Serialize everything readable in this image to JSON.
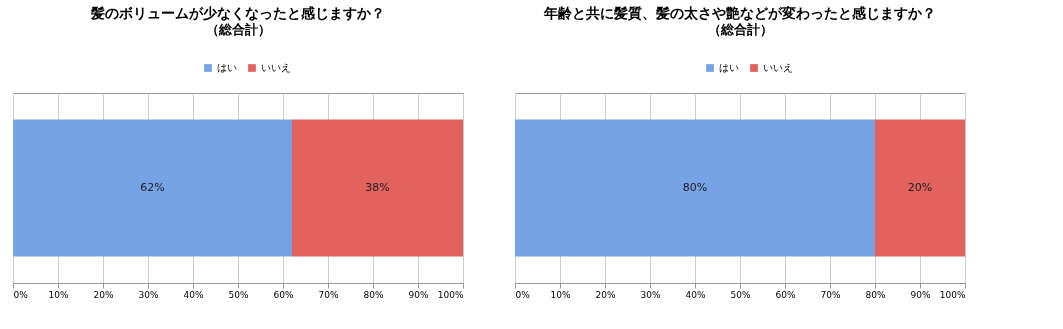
{
  "chart_data": [
    {
      "type": "bar",
      "orientation": "horizontal",
      "stacked": true,
      "title": "髪のボリュームが少なくなったと感じますか？",
      "subtitle": "（総合計）",
      "categories": [
        null
      ],
      "series": [
        {
          "name": "はい",
          "color": "#76a3e6",
          "values": [
            62
          ],
          "value_labels": [
            "62%"
          ]
        },
        {
          "name": "いいえ",
          "color": "#e2625e",
          "values": [
            38
          ],
          "value_labels": [
            "38%"
          ]
        }
      ],
      "xlim": [
        0,
        100
      ],
      "xticks": [
        {
          "value": 0,
          "label": "0%"
        },
        {
          "value": 10,
          "label": "10%"
        },
        {
          "value": 20,
          "label": "20%"
        },
        {
          "value": 30,
          "label": "30%"
        },
        {
          "value": 40,
          "label": "40%"
        },
        {
          "value": 50,
          "label": "50%"
        },
        {
          "value": 60,
          "label": "60%"
        },
        {
          "value": 70,
          "label": "70%"
        },
        {
          "value": 80,
          "label": "80%"
        },
        {
          "value": 90,
          "label": "90%"
        },
        {
          "value": 100,
          "label": "100%"
        }
      ],
      "grid": "x",
      "legend": "top"
    },
    {
      "type": "bar",
      "orientation": "horizontal",
      "stacked": true,
      "title": "年齢と共に髪質、髪の太さや艶などが変わったと感じますか？",
      "subtitle": "（総合計）",
      "categories": [
        null
      ],
      "series": [
        {
          "name": "はい",
          "color": "#76a3e6",
          "values": [
            80
          ],
          "value_labels": [
            "80%"
          ]
        },
        {
          "name": "いいえ",
          "color": "#e2625e",
          "values": [
            20
          ],
          "value_labels": [
            "20%"
          ]
        }
      ],
      "xlim": [
        0,
        100
      ],
      "xticks": [
        {
          "value": 0,
          "label": "0%"
        },
        {
          "value": 10,
          "label": "10%"
        },
        {
          "value": 20,
          "label": "20%"
        },
        {
          "value": 30,
          "label": "30%"
        },
        {
          "value": 40,
          "label": "40%"
        },
        {
          "value": 50,
          "label": "50%"
        },
        {
          "value": 60,
          "label": "60%"
        },
        {
          "value": 70,
          "label": "70%"
        },
        {
          "value": 80,
          "label": "80%"
        },
        {
          "value": 90,
          "label": "90%"
        },
        {
          "value": 100,
          "label": "100%"
        }
      ],
      "grid": "x",
      "legend": "top"
    }
  ]
}
